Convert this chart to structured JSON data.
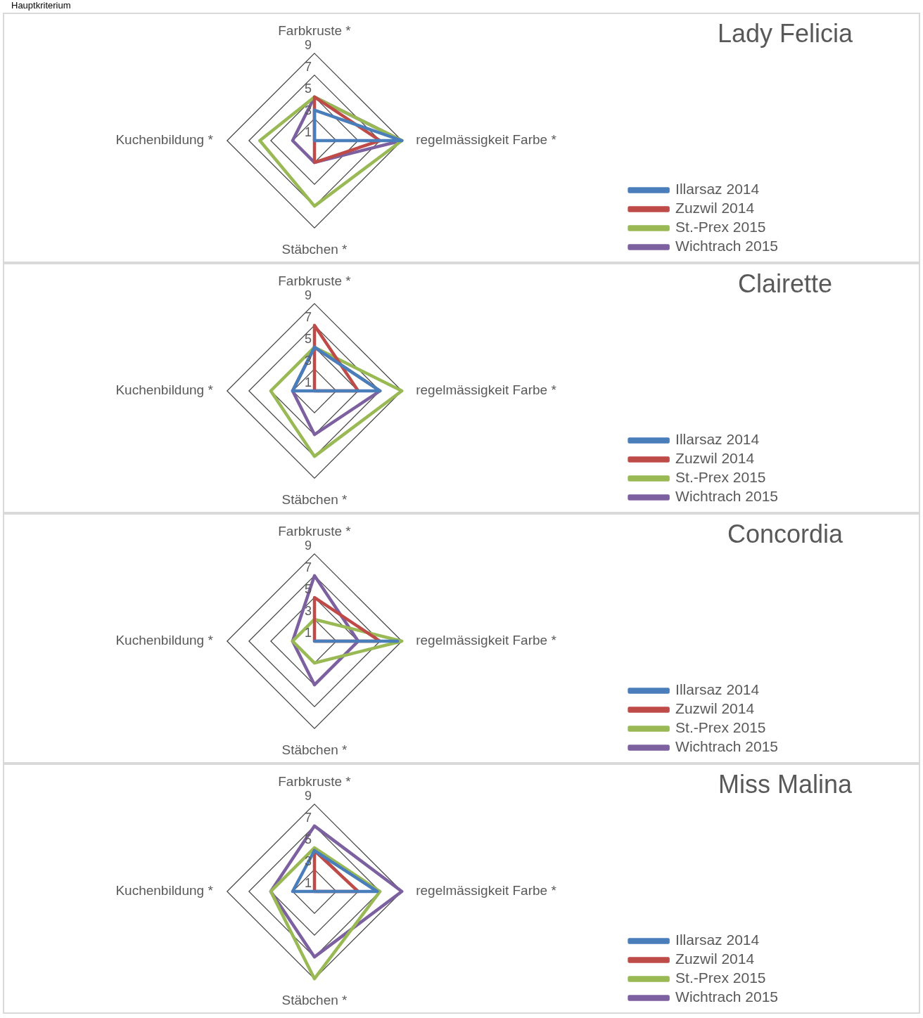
{
  "chart_data": [
    {
      "type": "radar",
      "title": "Lady Felicia",
      "annotations": [
        "Hauptkriterium"
      ],
      "categories": [
        "Farbkruste *",
        "regelmässigkeit Farbe *",
        "Stäbchen *",
        "Kuchenbildung *"
      ],
      "ylim": [
        1,
        9
      ],
      "yticks": [
        1,
        3,
        5,
        7,
        9
      ],
      "grid": true,
      "legend": "bottom right",
      "marker": "none",
      "line_style": "solid",
      "series": [
        {
          "name": "Illarsaz 2014",
          "color": "#4a7ebb",
          "values": [
            3.8,
            9,
            1,
            1
          ]
        },
        {
          "name": "Zuzwil 2014",
          "color": "#be4b48",
          "values": [
            5,
            7,
            3,
            1
          ]
        },
        {
          "name": "St.-Prex 2015",
          "color": "#98b954",
          "values": [
            5,
            9,
            7,
            6
          ]
        },
        {
          "name": "Wichtrach 2015",
          "color": "#7d60a0",
          "values": [
            5,
            9,
            3,
            3
          ]
        }
      ]
    },
    {
      "type": "radar",
      "title": "Clairette",
      "categories": [
        "Farbkruste *",
        "regelmässigkeit Farbe *",
        "Stäbchen *",
        "Kuchenbildung *"
      ],
      "ylim": [
        1,
        9
      ],
      "yticks": [
        1,
        3,
        5,
        7,
        9
      ],
      "grid": true,
      "legend": "bottom right",
      "marker": "none",
      "line_style": "solid",
      "series": [
        {
          "name": "Illarsaz 2014",
          "color": "#4a7ebb",
          "values": [
            5,
            7,
            1,
            3
          ]
        },
        {
          "name": "Zuzwil 2014",
          "color": "#be4b48",
          "values": [
            7,
            5,
            1,
            1
          ]
        },
        {
          "name": "St.-Prex 2015",
          "color": "#98b954",
          "values": [
            5,
            9,
            7,
            5
          ]
        },
        {
          "name": "Wichtrach 2015",
          "color": "#7d60a0",
          "values": [
            5,
            7,
            5,
            3
          ]
        }
      ]
    },
    {
      "type": "radar",
      "title": "Concordia",
      "categories": [
        "Farbkruste *",
        "regelmässigkeit Farbe *",
        "Stäbchen *",
        "Kuchenbildung *"
      ],
      "ylim": [
        1,
        9
      ],
      "yticks": [
        1,
        3,
        5,
        7,
        9
      ],
      "grid": true,
      "legend": "bottom right",
      "marker": "none",
      "line_style": "solid",
      "series": [
        {
          "name": "Illarsaz 2014",
          "color": "#4a7ebb",
          "values": [
            1,
            8.6,
            1,
            1
          ]
        },
        {
          "name": "Zuzwil 2014",
          "color": "#be4b48",
          "values": [
            5,
            7,
            1,
            1
          ]
        },
        {
          "name": "St.-Prex 2015",
          "color": "#98b954",
          "values": [
            3,
            9,
            3,
            3
          ]
        },
        {
          "name": "Wichtrach 2015",
          "color": "#7d60a0",
          "values": [
            7,
            5,
            5,
            3
          ]
        }
      ]
    },
    {
      "type": "radar",
      "title": "Miss Malina",
      "categories": [
        "Farbkruste *",
        "regelmässigkeit Farbe *",
        "Stäbchen *",
        "Kuchenbildung *"
      ],
      "ylim": [
        1,
        9
      ],
      "yticks": [
        1,
        3,
        5,
        7,
        9
      ],
      "grid": true,
      "legend": "bottom right",
      "marker": "none",
      "line_style": "solid",
      "series": [
        {
          "name": "Illarsaz 2014",
          "color": "#4a7ebb",
          "values": [
            4.75,
            6.75,
            1,
            3
          ]
        },
        {
          "name": "Zuzwil 2014",
          "color": "#be4b48",
          "values": [
            4.75,
            5,
            1,
            1
          ]
        },
        {
          "name": "St.-Prex 2015",
          "color": "#98b954",
          "values": [
            5,
            7,
            9,
            5
          ]
        },
        {
          "name": "Wichtrach 2015",
          "color": "#7d60a0",
          "values": [
            7,
            9,
            7,
            5
          ]
        }
      ]
    }
  ]
}
